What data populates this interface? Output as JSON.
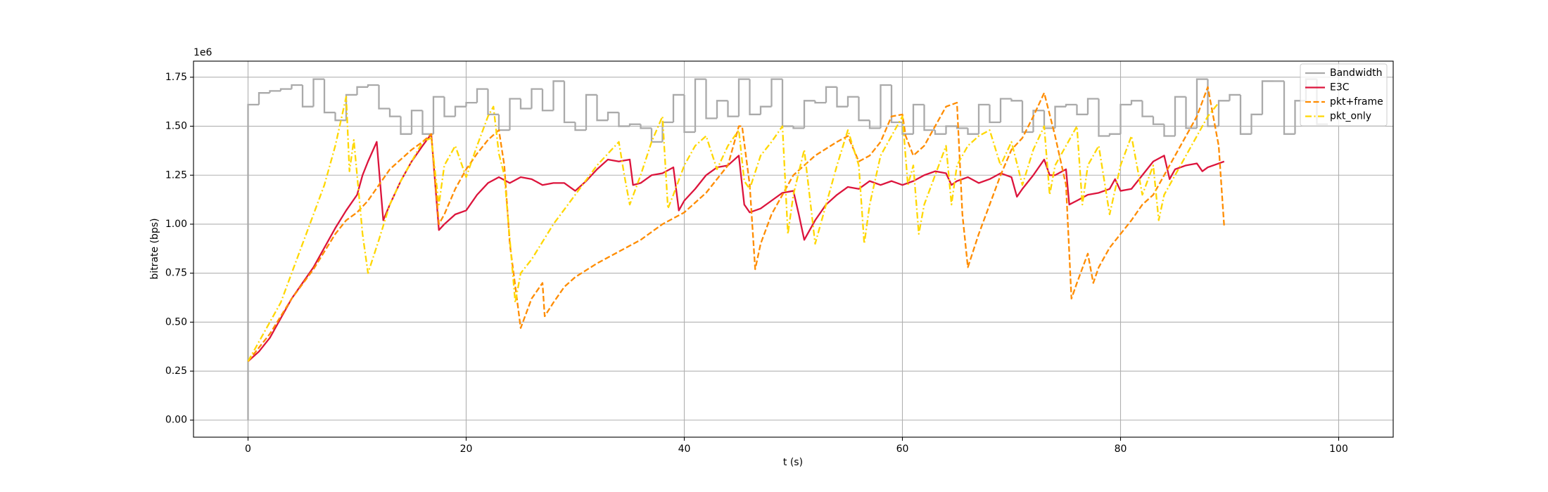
{
  "chart_data": {
    "type": "line",
    "xlabel": "t (s)",
    "ylabel": "bitrate (bps)",
    "y_offset_text": "1e6",
    "xlim": [
      -5,
      105
    ],
    "ylim": [
      -0.087,
      1.832
    ],
    "xticks": [
      0,
      20,
      40,
      60,
      80,
      100
    ],
    "yticks": [
      {
        "value": 0,
        "label": "0.00"
      },
      {
        "value": 0.25,
        "label": "0.25"
      },
      {
        "value": 0.5,
        "label": "0.50"
      },
      {
        "value": 0.75,
        "label": "0.75"
      },
      {
        "value": 1,
        "label": "1.00"
      },
      {
        "value": 1.25,
        "label": "1.25"
      },
      {
        "value": 1.5,
        "label": "1.50"
      },
      {
        "value": 1.75,
        "label": "1.75"
      }
    ],
    "grid": true,
    "legend": "upper right",
    "series": [
      {
        "name": "Bandwidth",
        "color": "#aaaaaa",
        "style": "solid",
        "drawstyle": "steps-post",
        "x": [
          0,
          0,
          1,
          2,
          3,
          4,
          5,
          6,
          7,
          8,
          9,
          10,
          11,
          12,
          13,
          14,
          15,
          16,
          17,
          18,
          19,
          20,
          21,
          22,
          23,
          24,
          25,
          26,
          27,
          28,
          29,
          30,
          31,
          32,
          33,
          34,
          35,
          36,
          37,
          38,
          39,
          40,
          41,
          42,
          43,
          44,
          45,
          46,
          47,
          48,
          49,
          50,
          51,
          52,
          53,
          54,
          55,
          56,
          57,
          58,
          59,
          60,
          61,
          62,
          63,
          64,
          65,
          66,
          67,
          68,
          69,
          70,
          71,
          72,
          73,
          74,
          75,
          76,
          77,
          78,
          79,
          80,
          81,
          82,
          83,
          84,
          85,
          86,
          87,
          88,
          89,
          90,
          91,
          92,
          93,
          94,
          95,
          96,
          97,
          98
        ],
        "values": [
          0,
          1.61,
          1.67,
          1.68,
          1.69,
          1.71,
          1.6,
          1.74,
          1.57,
          1.53,
          1.66,
          1.7,
          1.71,
          1.59,
          1.55,
          1.46,
          1.58,
          1.46,
          1.65,
          1.55,
          1.6,
          1.62,
          1.69,
          1.56,
          1.48,
          1.64,
          1.59,
          1.69,
          1.58,
          1.73,
          1.52,
          1.48,
          1.66,
          1.53,
          1.57,
          1.5,
          1.51,
          1.49,
          1.42,
          1.52,
          1.66,
          1.47,
          1.74,
          1.54,
          1.63,
          1.55,
          1.74,
          1.56,
          1.6,
          1.74,
          1.5,
          1.49,
          1.63,
          1.62,
          1.7,
          1.6,
          1.65,
          1.53,
          1.49,
          1.71,
          1.52,
          1.46,
          1.61,
          1.48,
          1.46,
          1.5,
          1.49,
          1.46,
          1.61,
          1.52,
          1.64,
          1.63,
          1.47,
          1.58,
          1.49,
          1.6,
          1.61,
          1.56,
          1.64,
          1.45,
          1.46,
          1.61,
          1.63,
          1.55,
          1.51,
          1.45,
          1.65,
          1.49,
          1.74,
          1.5,
          1.63,
          1.66,
          1.46,
          1.56,
          1.73,
          1.73,
          1.46,
          1.63,
          1.74,
          1.51
        ]
      },
      {
        "name": "E3C",
        "color": "#dc143c",
        "style": "solid",
        "drawstyle": "default",
        "x": [
          0,
          1,
          2,
          3,
          4,
          5,
          6,
          7,
          8,
          9,
          10,
          10.5,
          11,
          11.8,
          12.4,
          13,
          14,
          15,
          16,
          16.8,
          17.5,
          18,
          19,
          20,
          21,
          22,
          23,
          24,
          25,
          26,
          27,
          28,
          29,
          30,
          31,
          32,
          33,
          34,
          35,
          35.3,
          36,
          37,
          38,
          39,
          39.5,
          40,
          41,
          42,
          43,
          44,
          45,
          45.5,
          46,
          47,
          48,
          49,
          50,
          50.5,
          51,
          52,
          53,
          54,
          55,
          56,
          57,
          58,
          59,
          60,
          61,
          62,
          63,
          64,
          64.5,
          65,
          66,
          67,
          68,
          69,
          70,
          70.5,
          71,
          72,
          73,
          73.5,
          74,
          75,
          75.3,
          76,
          77,
          78,
          79,
          79.5,
          80,
          81,
          82,
          83,
          84,
          84.5,
          85,
          86,
          87,
          87.5,
          88,
          89,
          89.5
        ],
        "values": [
          0.3,
          0.35,
          0.42,
          0.52,
          0.62,
          0.7,
          0.78,
          0.88,
          0.98,
          1.07,
          1.15,
          1.25,
          1.32,
          1.42,
          1.02,
          1.1,
          1.22,
          1.32,
          1.4,
          1.46,
          0.97,
          1.0,
          1.05,
          1.07,
          1.15,
          1.21,
          1.24,
          1.21,
          1.24,
          1.23,
          1.2,
          1.21,
          1.21,
          1.17,
          1.22,
          1.28,
          1.33,
          1.32,
          1.33,
          1.2,
          1.21,
          1.25,
          1.26,
          1.29,
          1.07,
          1.12,
          1.18,
          1.25,
          1.29,
          1.3,
          1.35,
          1.1,
          1.06,
          1.08,
          1.12,
          1.16,
          1.17,
          1.05,
          0.92,
          1.02,
          1.1,
          1.15,
          1.19,
          1.18,
          1.22,
          1.2,
          1.22,
          1.2,
          1.22,
          1.25,
          1.27,
          1.26,
          1.2,
          1.22,
          1.24,
          1.21,
          1.23,
          1.26,
          1.24,
          1.14,
          1.18,
          1.25,
          1.33,
          1.25,
          1.25,
          1.28,
          1.1,
          1.12,
          1.15,
          1.16,
          1.18,
          1.23,
          1.17,
          1.18,
          1.25,
          1.32,
          1.35,
          1.23,
          1.28,
          1.3,
          1.31,
          1.27,
          1.29,
          1.31,
          1.32
        ]
      },
      {
        "name": "pkt+frame",
        "color": "#ff8c00",
        "style": "dashed",
        "drawstyle": "default",
        "x": [
          0,
          2,
          4,
          6,
          8,
          9,
          10,
          11,
          12,
          13,
          14,
          15,
          16,
          16.8,
          17.5,
          18,
          19,
          20,
          21,
          22,
          23,
          23.5,
          24,
          25,
          26,
          27,
          27.2,
          28,
          29,
          30,
          32,
          34,
          36,
          38,
          40,
          42,
          44,
          45,
          45.3,
          46,
          46.5,
          47,
          48,
          49,
          50,
          52,
          54,
          55,
          56,
          57,
          58,
          59,
          60,
          60.3,
          61,
          62,
          63,
          64,
          65,
          65.5,
          66,
          67,
          68,
          69,
          70,
          71,
          72,
          73,
          74,
          75,
          75.5,
          76,
          77,
          77.5,
          78,
          79,
          80,
          81,
          82,
          83,
          84,
          85,
          86,
          87,
          88,
          89,
          89.5
        ],
        "values": [
          0.3,
          0.44,
          0.62,
          0.77,
          0.95,
          1.02,
          1.06,
          1.12,
          1.2,
          1.28,
          1.33,
          1.38,
          1.42,
          1.46,
          1.0,
          1.05,
          1.18,
          1.28,
          1.36,
          1.43,
          1.48,
          1.3,
          0.9,
          0.47,
          0.62,
          0.7,
          0.53,
          0.6,
          0.68,
          0.73,
          0.8,
          0.86,
          0.92,
          1.0,
          1.06,
          1.16,
          1.3,
          1.5,
          1.5,
          1.2,
          0.77,
          0.9,
          1.05,
          1.15,
          1.25,
          1.35,
          1.42,
          1.45,
          1.32,
          1.35,
          1.42,
          1.55,
          1.56,
          1.45,
          1.35,
          1.4,
          1.5,
          1.6,
          1.62,
          1.05,
          0.78,
          0.95,
          1.1,
          1.25,
          1.38,
          1.44,
          1.55,
          1.67,
          1.45,
          1.2,
          0.62,
          0.7,
          0.85,
          0.7,
          0.78,
          0.88,
          0.95,
          1.02,
          1.1,
          1.15,
          1.25,
          1.35,
          1.45,
          1.55,
          1.7,
          1.4,
          0.99
        ]
      },
      {
        "name": "pkt_only",
        "color": "#ffd700",
        "style": "dashdot",
        "drawstyle": "default",
        "x": [
          0,
          1,
          3,
          5,
          7,
          8,
          9,
          9.3,
          9.7,
          10.5,
          11,
          12,
          13,
          14,
          15,
          16,
          16.8,
          17.5,
          18,
          19,
          20,
          21,
          22,
          22.5,
          23,
          23.5,
          24.5,
          25,
          26,
          28,
          30,
          32,
          34,
          34.5,
          35,
          36,
          37,
          38,
          38.5,
          39,
          40,
          41,
          42,
          43,
          44,
          45,
          45.5,
          46,
          47,
          48,
          49,
          49.5,
          50,
          51,
          52,
          53,
          54,
          55,
          56,
          56.5,
          57,
          58,
          59,
          60,
          60.5,
          61,
          61.5,
          62,
          63,
          64,
          64.5,
          65,
          66,
          67,
          68,
          69,
          70,
          71,
          72,
          73,
          73.5,
          74,
          75,
          76,
          76.5,
          77,
          78,
          79,
          80,
          81,
          82,
          83,
          83.5,
          84,
          85,
          86,
          87,
          88,
          89
        ],
        "values": [
          0.3,
          0.4,
          0.6,
          0.9,
          1.2,
          1.4,
          1.65,
          1.27,
          1.43,
          0.95,
          0.75,
          0.92,
          1.1,
          1.22,
          1.32,
          1.42,
          1.44,
          1.1,
          1.3,
          1.4,
          1.24,
          1.4,
          1.55,
          1.6,
          1.36,
          1.25,
          0.6,
          0.75,
          0.82,
          1.0,
          1.15,
          1.3,
          1.42,
          1.25,
          1.1,
          1.25,
          1.42,
          1.55,
          1.08,
          1.15,
          1.3,
          1.4,
          1.45,
          1.28,
          1.4,
          1.48,
          1.22,
          1.18,
          1.35,
          1.42,
          1.5,
          0.95,
          1.15,
          1.38,
          0.9,
          1.1,
          1.3,
          1.48,
          1.3,
          0.9,
          1.1,
          1.35,
          1.45,
          1.55,
          1.2,
          1.3,
          0.95,
          1.1,
          1.25,
          1.4,
          1.1,
          1.3,
          1.4,
          1.45,
          1.48,
          1.3,
          1.42,
          1.2,
          1.38,
          1.5,
          1.15,
          1.3,
          1.4,
          1.5,
          1.1,
          1.3,
          1.4,
          1.05,
          1.3,
          1.45,
          1.15,
          1.3,
          1.02,
          1.15,
          1.25,
          1.35,
          1.45,
          1.55,
          1.62
        ]
      }
    ]
  }
}
